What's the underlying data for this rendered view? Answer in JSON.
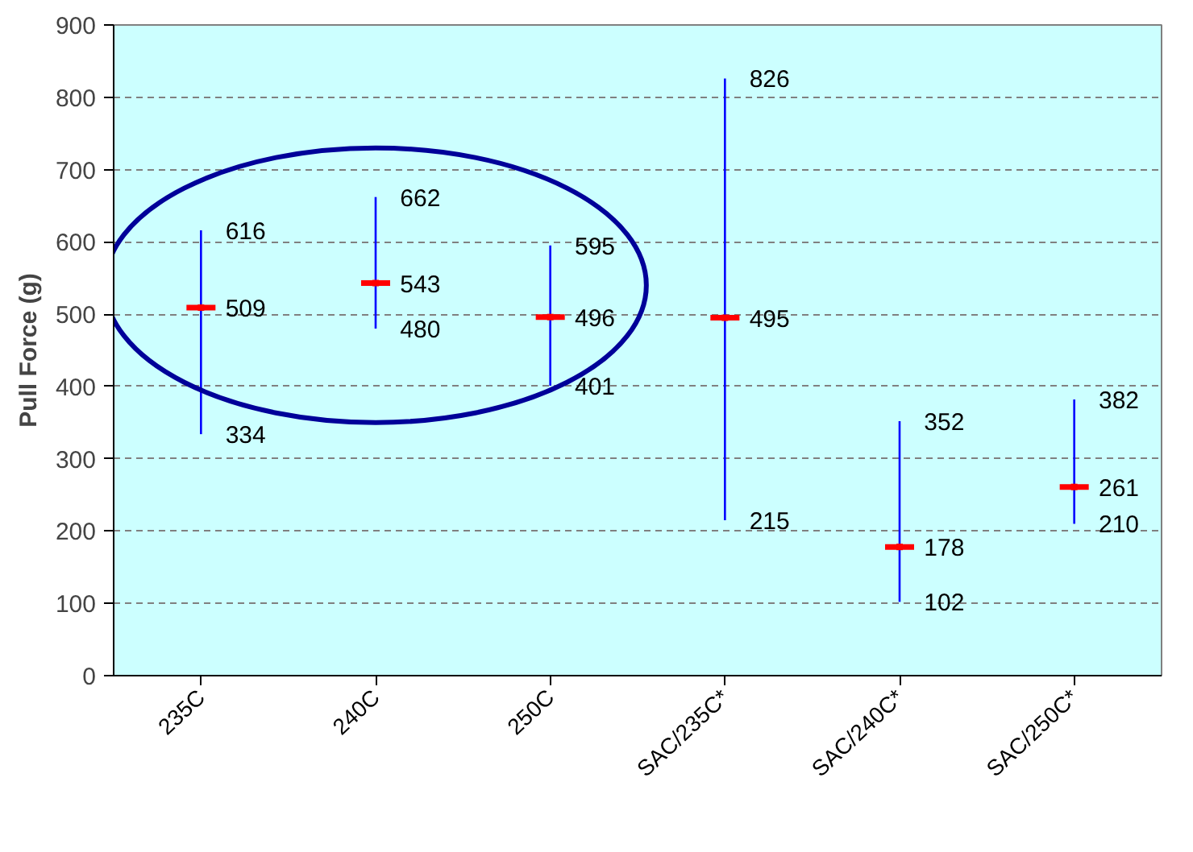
{
  "chart_data": {
    "type": "scatter",
    "ylabel": "Pull Force (g)",
    "categories": [
      "235C",
      "240C",
      "250C",
      "SAC/235C*",
      "SAC/240C*",
      "SAC/250C*"
    ],
    "series": [
      {
        "color": "#ff0000",
        "values": [
          509,
          543,
          496,
          495,
          178,
          261
        ],
        "errors": [
          [
            334,
            616
          ],
          [
            480,
            662
          ],
          [
            401,
            595
          ],
          [
            215,
            826
          ],
          [
            102,
            352
          ],
          [
            210,
            382
          ]
        ]
      }
    ],
    "data_labels": true,
    "ylim": [
      0,
      900
    ],
    "yticks": [
      0,
      100,
      200,
      300,
      400,
      500,
      600,
      700,
      800,
      900
    ],
    "grid": "y",
    "annotations": [
      {
        "text": "616",
        "x": "235C",
        "y": 616
      },
      {
        "text": "334",
        "x": "235C",
        "y": 334
      },
      {
        "text": "662",
        "x": "240C",
        "y": 662
      },
      {
        "text": "480",
        "x": "240C",
        "y": 480
      },
      {
        "text": "595",
        "x": "250C",
        "y": 595
      },
      {
        "text": "401",
        "x": "250C",
        "y": 401
      },
      {
        "text": "826",
        "x": "SAC/235C*",
        "y": 826
      },
      {
        "text": "215",
        "x": "SAC/235C*",
        "y": 215
      },
      {
        "text": "352",
        "x": "SAC/240C*",
        "y": 352
      },
      {
        "text": "102",
        "x": "SAC/240C*",
        "y": 102
      },
      {
        "text": "382",
        "x": "SAC/250C*",
        "y": 382
      },
      {
        "text": "210",
        "x": "SAC/250C*",
        "y": 210
      }
    ]
  }
}
